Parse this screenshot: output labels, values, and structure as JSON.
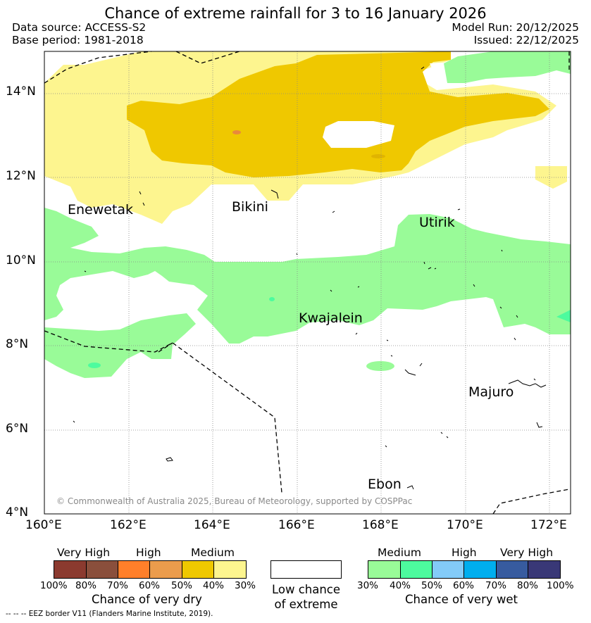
{
  "header": {
    "title": "Chance of extreme rainfall for 3 to 16 January 2026",
    "data_source": "Data source: ACCESS-S2",
    "base_period": "Base period: 1981-2018",
    "model_run": "Model Run: 20/12/2025",
    "issued": "Issued: 22/12/2025"
  },
  "map": {
    "lat_labels": [
      "14°N",
      "12°N",
      "10°N",
      "8°N",
      "6°N",
      "4°N"
    ],
    "lon_labels": [
      "160°E",
      "162°E",
      "164°E",
      "166°E",
      "168°E",
      "170°E",
      "172°E"
    ],
    "places": {
      "enewetak": "Enewetak",
      "bikini": "Bikini",
      "utirik": "Utirik",
      "kwajalein": "Kwajalein",
      "majuro": "Majuro",
      "ebon": "Ebon"
    },
    "copyright": "© Commonwealth of Australia 2025, Bureau of Meteorology, supported by COSPPac"
  },
  "legend": {
    "dry": {
      "levels": [
        "Very High",
        "High",
        "Medium"
      ],
      "colors": [
        "#8b3a2f",
        "#8a4f3c",
        "#ff7f2a",
        "#eb9c4c",
        "#efc800",
        "#fdf58f"
      ],
      "ticks": [
        "100%",
        "80%",
        "70%",
        "60%",
        "50%",
        "40%",
        "30%"
      ],
      "caption": "Chance of very dry"
    },
    "low": {
      "caption_line1": "Low chance",
      "caption_line2": "of extreme"
    },
    "wet": {
      "levels": [
        "Medium",
        "High",
        "Very High"
      ],
      "colors": [
        "#99fb98",
        "#4dfb9e",
        "#83cbf8",
        "#00aeee",
        "#375b9f",
        "#393877"
      ],
      "ticks": [
        "30%",
        "40%",
        "50%",
        "60%",
        "70%",
        "80%",
        "100%"
      ],
      "caption": "Chance of very wet"
    },
    "eez_note": "--  --  -- EEZ border V11 (Flanders Marine Institute, 2019)."
  }
}
